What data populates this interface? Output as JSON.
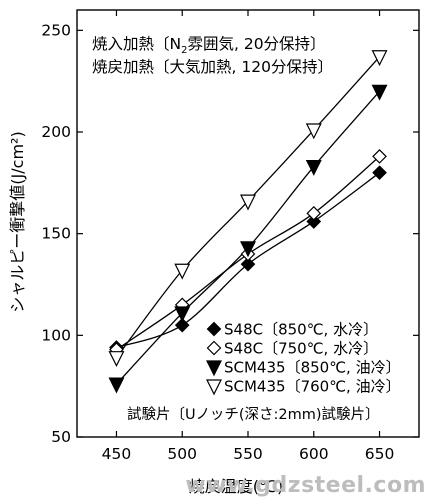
{
  "chart_data": {
    "type": "line",
    "xlabel": "焼戻温度(℃)",
    "ylabel": "シャルピー衝撃値(J/cm²)",
    "xlim": [
      420,
      680
    ],
    "ylim": [
      50,
      260
    ],
    "xticks": [
      450,
      500,
      550,
      600,
      650
    ],
    "yticks": [
      50,
      100,
      150,
      200,
      250
    ],
    "grid": false,
    "legend_position": "bottom-right",
    "annotations": [
      {
        "text_main": "焼入加熱〔N",
        "sub": "2",
        "text_rest": "雰囲気, 20分保持〕"
      },
      {
        "text": "焼戻加熱〔大気加熱, 120分保持〕"
      }
    ],
    "footnote": "試験片〔Uノッチ(深さ:2mm)試験片〕",
    "series": [
      {
        "name": "S48C〔850℃, 水冷〕",
        "marker": "diamond-filled",
        "x": [
          450,
          500,
          550,
          600,
          650
        ],
        "values": [
          94,
          105,
          135,
          156,
          180
        ]
      },
      {
        "name": "S48C〔750℃, 水冷〕",
        "marker": "diamond-open",
        "x": [
          450,
          500,
          550,
          600,
          650
        ],
        "values": [
          93,
          115,
          140,
          160,
          188
        ]
      },
      {
        "name": "SCM435〔850℃, 油冷〕",
        "marker": "triangle-down-filled",
        "x": [
          450,
          500,
          550,
          600,
          650
        ],
        "values": [
          76,
          111,
          143,
          183,
          220
        ]
      },
      {
        "name": "SCM435〔760℃, 油冷〕",
        "marker": "triangle-down-open",
        "x": [
          450,
          500,
          550,
          600,
          650
        ],
        "values": [
          89,
          132,
          166,
          201,
          237
        ]
      }
    ]
  },
  "watermark": "www.gdzsteel.com"
}
